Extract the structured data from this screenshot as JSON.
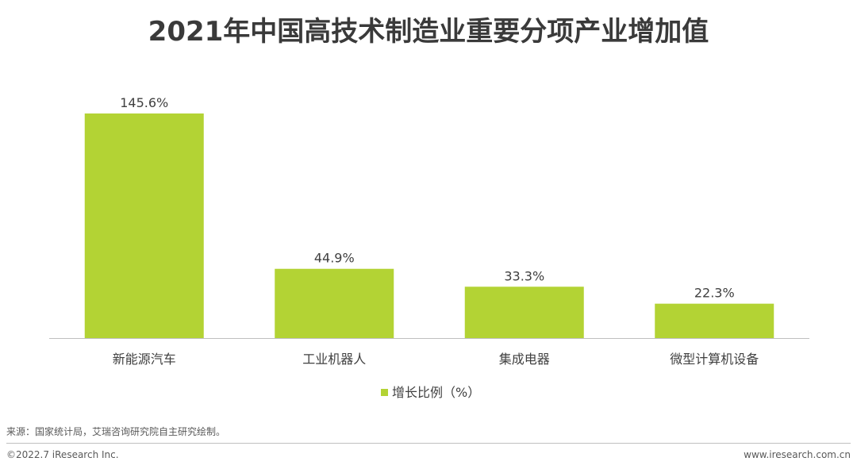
{
  "chart_data": {
    "type": "bar",
    "title": "2021年中国高技术制造业重要分项产业增加值",
    "categories": [
      "新能源汽车",
      "工业机器人",
      "集成电器",
      "微型计算机设备"
    ],
    "series": [
      {
        "name": "增长比例（%）",
        "values": [
          145.6,
          44.9,
          33.3,
          22.3
        ],
        "labels": [
          "145.6%",
          "44.9%",
          "33.3%",
          "22.3%"
        ]
      }
    ],
    "ylim": [
      0,
      160
    ],
    "grid": false,
    "legend_position": "bottom",
    "bar_color": "#b3d334"
  },
  "footer": {
    "source": "来源：国家统计局，艾瑞咨询研究院自主研究绘制。",
    "copyright": "©2022.7 iResearch Inc.",
    "website": "www.iresearch.com.cn"
  }
}
